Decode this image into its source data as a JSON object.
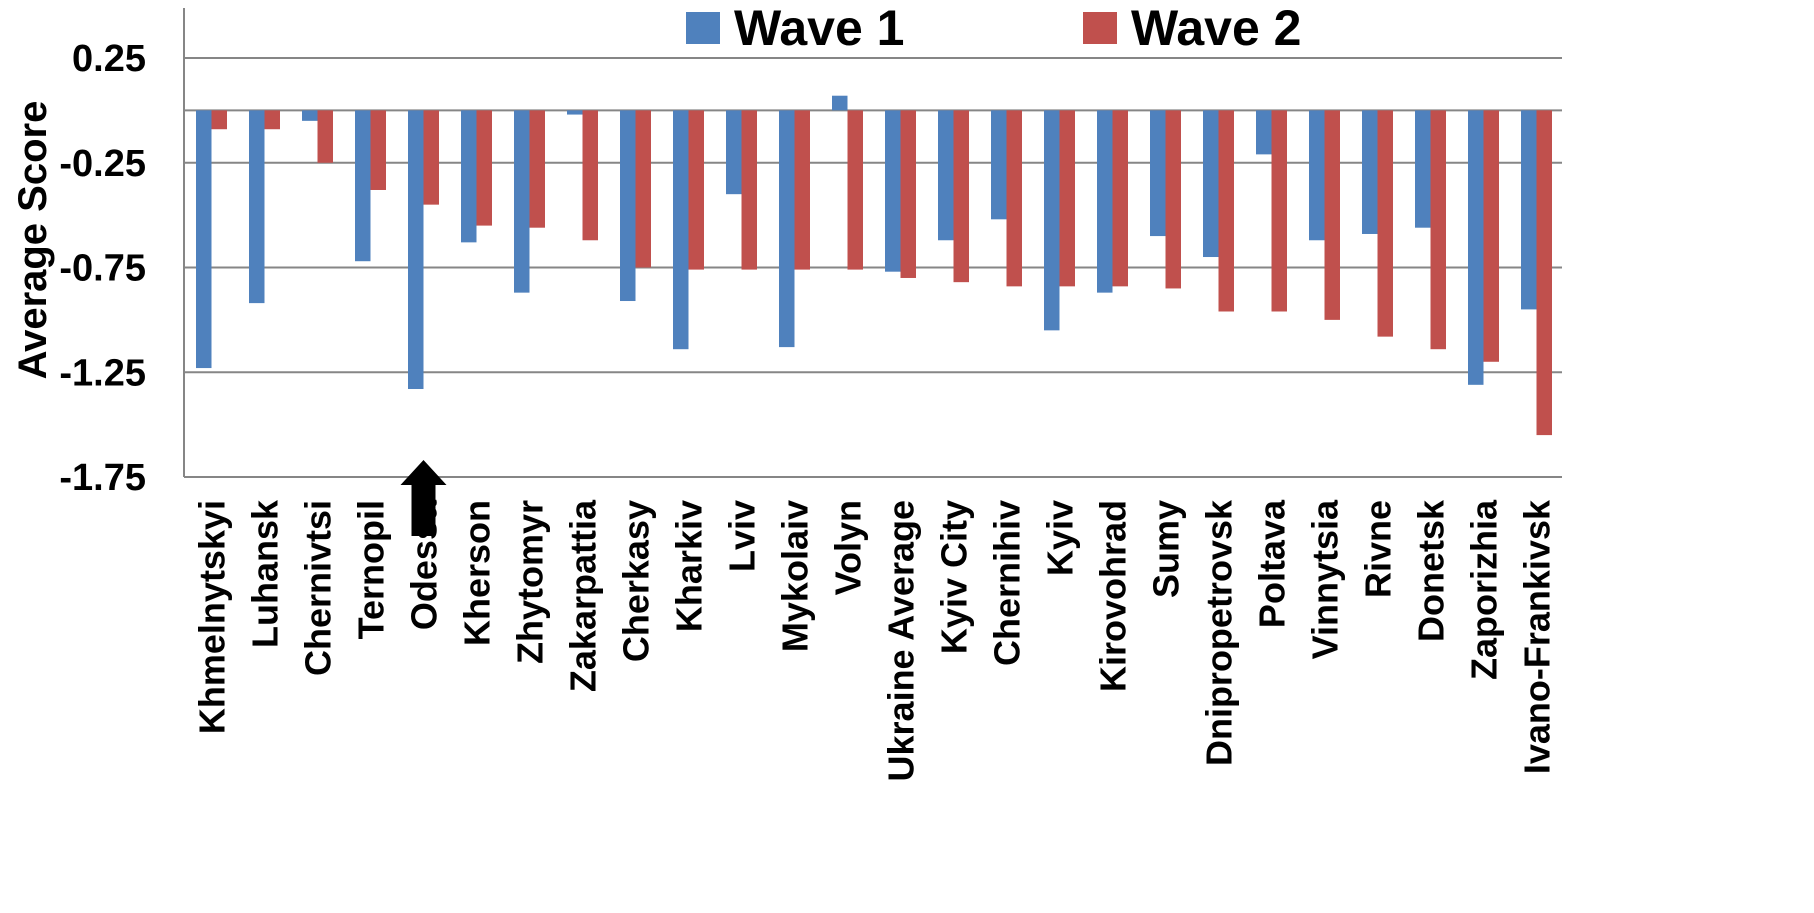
{
  "chart_data": {
    "type": "bar",
    "title": "",
    "xlabel": "",
    "ylabel": "Average Score",
    "ylim": [
      -1.75,
      0.5
    ],
    "yticks": [
      0.25,
      -0.25,
      -0.75,
      -1.25,
      -1.75
    ],
    "ytick_labels": [
      "0.25",
      "-0.25",
      "-0.75",
      "-1.25",
      "-1.75"
    ],
    "grid": true,
    "legend_position": "top",
    "categories": [
      "Khmelnytskyi",
      "Luhansk",
      "Chernivtsi",
      "Ternopil",
      "Odessa",
      "Kherson",
      "Zhytomyr",
      "Zakarpattia",
      "Cherkasy",
      "Kharkiv",
      "Lviv",
      "Mykolaiv",
      "Volyn",
      "Ukraine Average",
      "Kyiv City",
      "Chernihiv",
      "Kyiv",
      "Kirovohrad",
      "Sumy",
      "Dnipropetrovsk",
      "Poltava",
      "Vinnytsia",
      "Rivne",
      "Donetsk",
      "Zaporizhia",
      "Ivano-Frankivsk"
    ],
    "series": [
      {
        "name": "Wave 1",
        "color": "#4f81bd",
        "values": [
          -1.23,
          -0.92,
          -0.05,
          -0.72,
          -1.33,
          -0.63,
          -0.87,
          -0.02,
          -0.91,
          -1.14,
          -0.4,
          -1.13,
          0.07,
          -0.77,
          -0.62,
          -0.52,
          -1.05,
          -0.87,
          -0.6,
          -0.7,
          -0.21,
          -0.62,
          -0.59,
          -0.56,
          -1.31,
          -0.95
        ]
      },
      {
        "name": "Wave 2",
        "color": "#c0504d",
        "values": [
          -0.09,
          -0.09,
          -0.25,
          -0.38,
          -0.45,
          -0.55,
          -0.56,
          -0.62,
          -0.75,
          -0.76,
          -0.76,
          -0.76,
          -0.76,
          -0.8,
          -0.82,
          -0.84,
          -0.84,
          -0.84,
          -0.85,
          -0.96,
          -0.96,
          -1.0,
          -1.08,
          -1.14,
          -1.2,
          -1.55
        ]
      }
    ],
    "annotations": [
      {
        "type": "arrow",
        "direction": "up",
        "category": "Odessa",
        "color": "#000000"
      }
    ]
  }
}
